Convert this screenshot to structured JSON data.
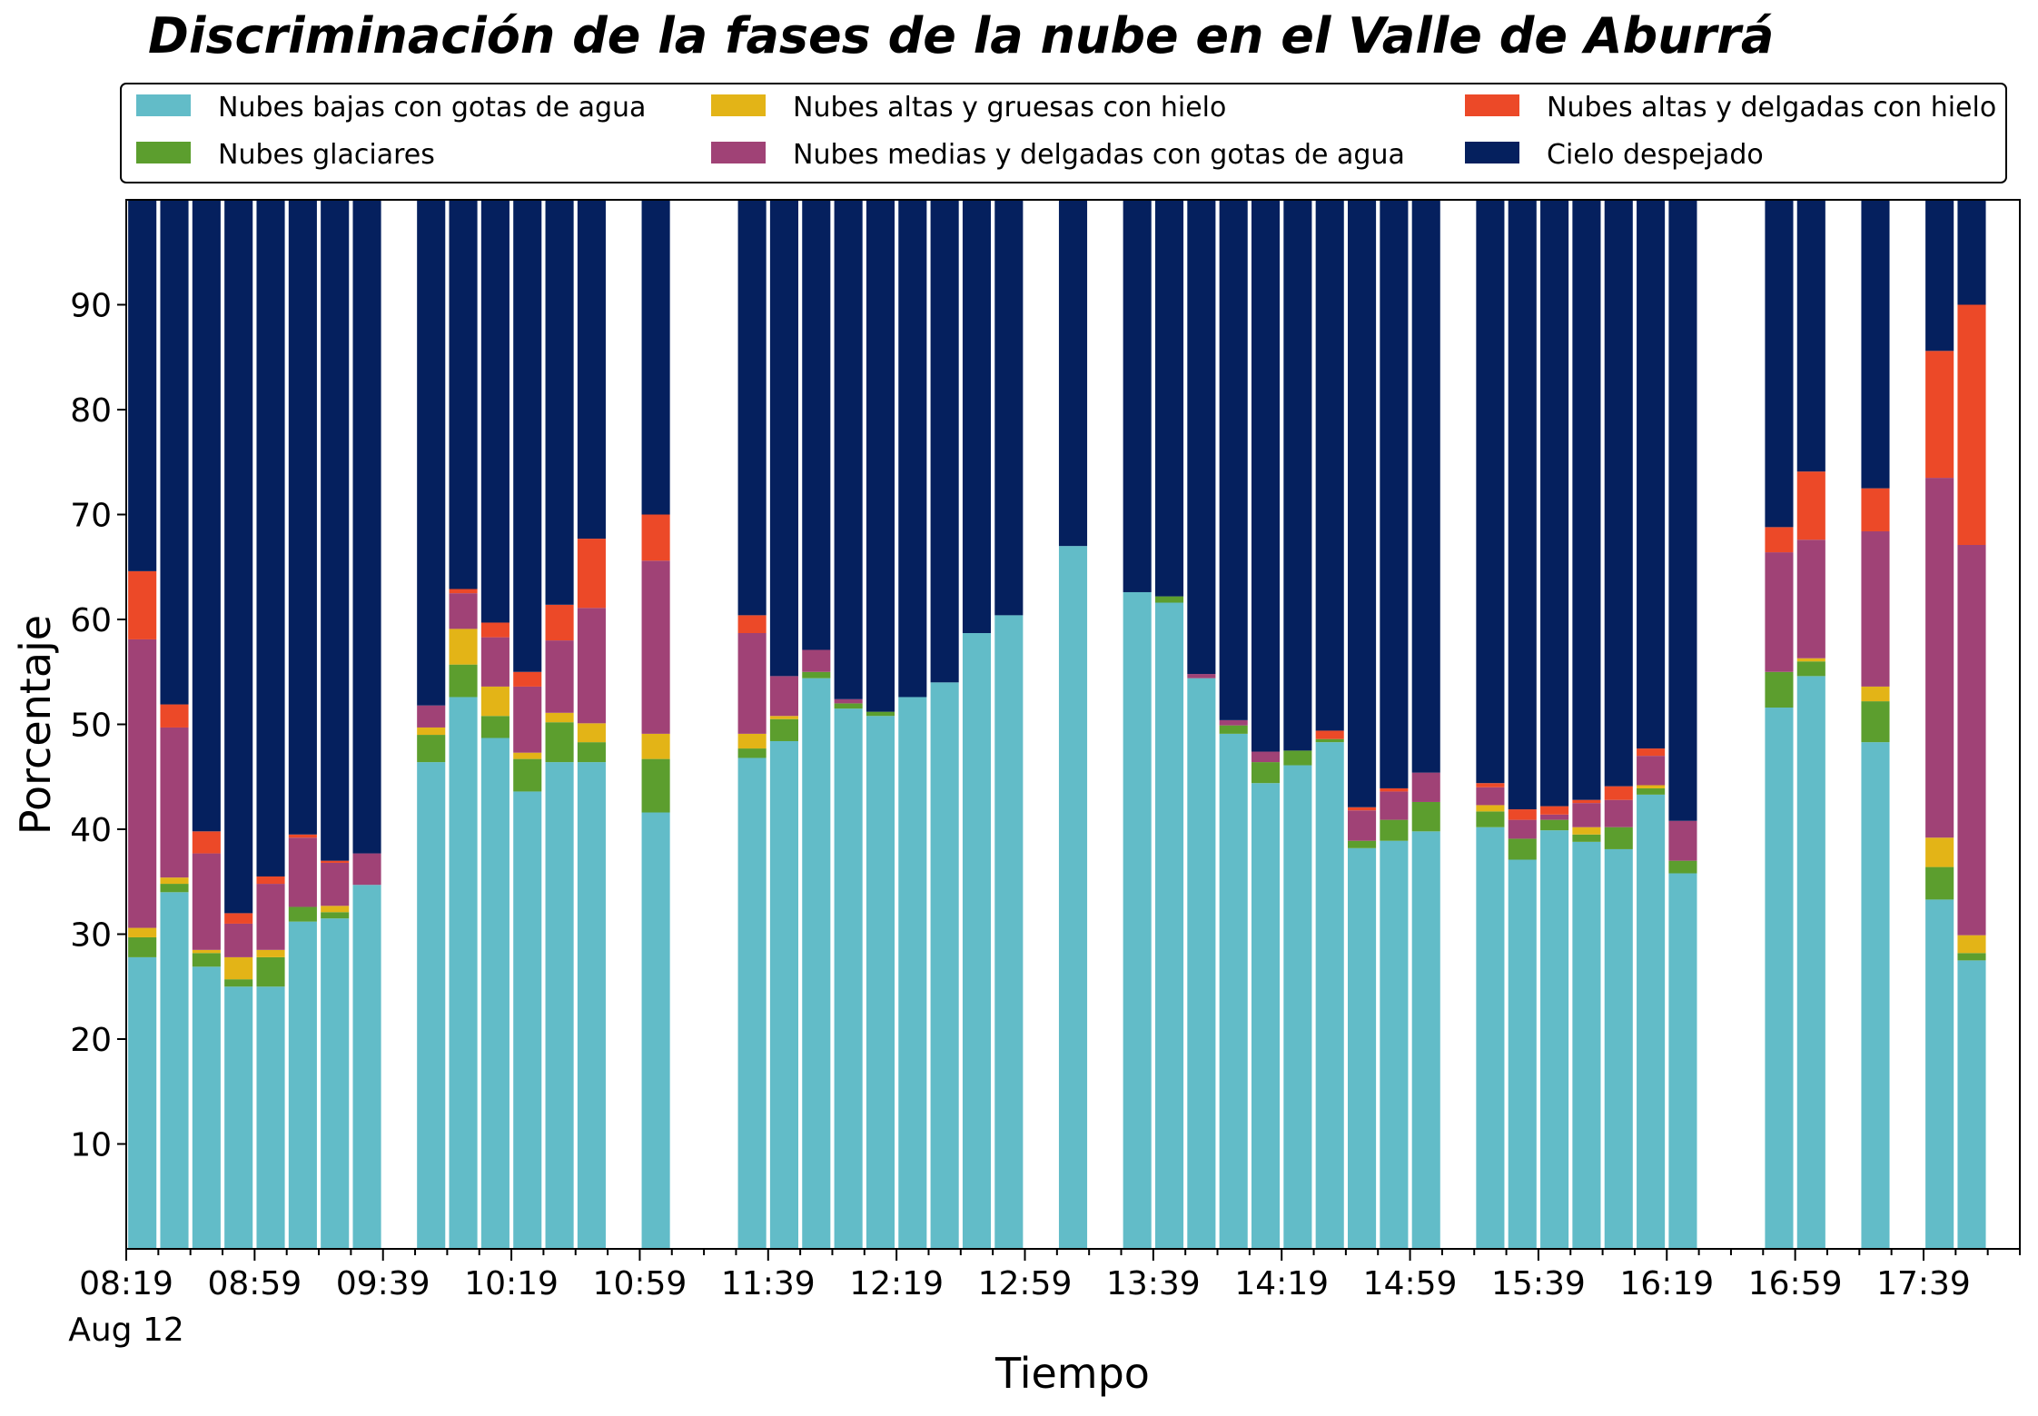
{
  "chart_data": {
    "type": "bar",
    "stacked": true,
    "title": "Discriminación de la fases de la nube en el Valle de Aburrá",
    "xlabel": "Tiempo",
    "ylabel": "Porcentaje",
    "ylim": [
      0,
      100
    ],
    "y_ticks": [
      10,
      20,
      30,
      40,
      50,
      60,
      70,
      80,
      90
    ],
    "x_tick_labels": [
      "08:19",
      "08:59",
      "09:39",
      "10:19",
      "10:59",
      "11:39",
      "12:19",
      "12:59",
      "13:39",
      "14:19",
      "14:59",
      "15:39",
      "16:19",
      "16:59",
      "17:39"
    ],
    "x_date_label": "Aug 12",
    "x_start": "08:19",
    "x_interval_minutes": 10,
    "x_end": "18:09",
    "grid": false,
    "legend_position": "top, above plot, 3 columns",
    "x": [
      "08:24",
      "08:34",
      "08:44",
      "08:54",
      "09:04",
      "09:14",
      "09:24",
      "09:34",
      "09:54",
      "10:04",
      "10:14",
      "10:24",
      "10:34",
      "10:44",
      "11:04",
      "11:34",
      "11:44",
      "11:54",
      "12:04",
      "12:14",
      "12:24",
      "12:34",
      "12:44",
      "12:54",
      "13:14",
      "13:34",
      "13:44",
      "13:54",
      "14:04",
      "14:14",
      "14:24",
      "14:34",
      "14:44",
      "14:54",
      "15:04",
      "15:24",
      "15:34",
      "15:44",
      "15:54",
      "16:04",
      "16:14",
      "16:24",
      "16:54",
      "17:04",
      "17:24",
      "17:44",
      "17:54"
    ],
    "series": [
      {
        "name": "Nubes bajas con gotas de agua",
        "color": "#62bcc8",
        "values": [
          27.8,
          34.0,
          26.9,
          25.0,
          25.0,
          31.2,
          31.5,
          34.7,
          46.4,
          52.6,
          48.7,
          43.6,
          46.4,
          46.4,
          41.6,
          46.8,
          48.4,
          54.4,
          51.5,
          50.8,
          52.6,
          54.0,
          58.7,
          60.4,
          67.0,
          62.6,
          61.6,
          54.4,
          49.1,
          44.4,
          46.1,
          48.3,
          38.2,
          38.9,
          39.8,
          40.2,
          37.1,
          39.9,
          38.8,
          38.1,
          43.3,
          35.8,
          51.6,
          54.6,
          48.3,
          33.3,
          27.5
        ]
      },
      {
        "name": "Nubes glaciares",
        "color": "#5c9e2e",
        "values": [
          1.9,
          0.8,
          1.3,
          0.7,
          2.8,
          1.4,
          0.6,
          0,
          2.6,
          3.1,
          2.1,
          3.1,
          3.8,
          1.9,
          5.1,
          0.9,
          2.1,
          0.6,
          0.5,
          0.4,
          0,
          0,
          0,
          0,
          0,
          0,
          0.6,
          0,
          0.8,
          2.0,
          1.4,
          0.3,
          0.7,
          2.0,
          2.8,
          1.5,
          2.0,
          1.0,
          0.7,
          2.1,
          0.6,
          1.2,
          3.4,
          1.4,
          3.9,
          3.1,
          0.7
        ]
      },
      {
        "name": "Nubes altas y gruesas con hielo",
        "color": "#e3b417",
        "values": [
          0.9,
          0.6,
          0.3,
          2.1,
          0.7,
          0,
          0.6,
          0,
          0.7,
          3.4,
          2.8,
          0.6,
          0.9,
          1.8,
          2.4,
          1.4,
          0.3,
          0,
          0,
          0,
          0,
          0,
          0,
          0,
          0,
          0,
          0,
          0,
          0,
          0,
          0,
          0,
          0,
          0,
          0,
          0.6,
          0,
          0,
          0.7,
          0,
          0.3,
          0,
          0,
          0.3,
          1.4,
          2.8,
          1.7
        ]
      },
      {
        "name": "Nubes medias y delgadas con gotas de agua",
        "color": "#a04276",
        "values": [
          27.5,
          14.3,
          9.2,
          3.2,
          6.3,
          6.6,
          4.1,
          3.0,
          2.1,
          3.4,
          4.7,
          6.3,
          6.9,
          11.0,
          16.5,
          9.6,
          3.8,
          2.1,
          0.4,
          0,
          0,
          0,
          0,
          0,
          0,
          0,
          0,
          0.4,
          0.5,
          1.0,
          0,
          0,
          2.9,
          2.7,
          2.8,
          1.7,
          1.8,
          0.5,
          2.3,
          2.6,
          2.8,
          3.8,
          11.4,
          11.3,
          14.8,
          34.3,
          37.2
        ]
      },
      {
        "name": "Nubes altas y delgadas con hielo",
        "color": "#ec4928",
        "values": [
          6.5,
          2.2,
          2.1,
          1.0,
          0.7,
          0.3,
          0.2,
          0,
          0,
          0.4,
          1.4,
          1.4,
          3.4,
          6.6,
          4.4,
          1.7,
          0,
          0,
          0,
          0,
          0,
          0,
          0,
          0,
          0,
          0,
          0,
          0,
          0,
          0,
          0,
          0.8,
          0.3,
          0.3,
          0,
          0.4,
          1.0,
          0.8,
          0.3,
          1.3,
          0.7,
          0,
          2.4,
          6.5,
          4.1,
          12.1,
          22.9
        ]
      },
      {
        "name": "Cielo despejado",
        "color": "#05205e",
        "values": [
          35.4,
          48.1,
          60.2,
          68.0,
          64.5,
          60.5,
          63.0,
          62.3,
          48.2,
          37.1,
          40.3,
          45.0,
          38.6,
          32.3,
          30.0,
          39.6,
          45.4,
          42.9,
          47.6,
          48.8,
          47.4,
          46.0,
          41.3,
          39.6,
          33.0,
          37.4,
          37.8,
          45.2,
          49.6,
          52.6,
          52.5,
          50.6,
          57.9,
          56.1,
          54.6,
          55.6,
          58.1,
          57.8,
          57.2,
          55.9,
          52.3,
          59.2,
          31.2,
          25.9,
          27.5,
          14.4,
          10.0
        ]
      }
    ]
  }
}
